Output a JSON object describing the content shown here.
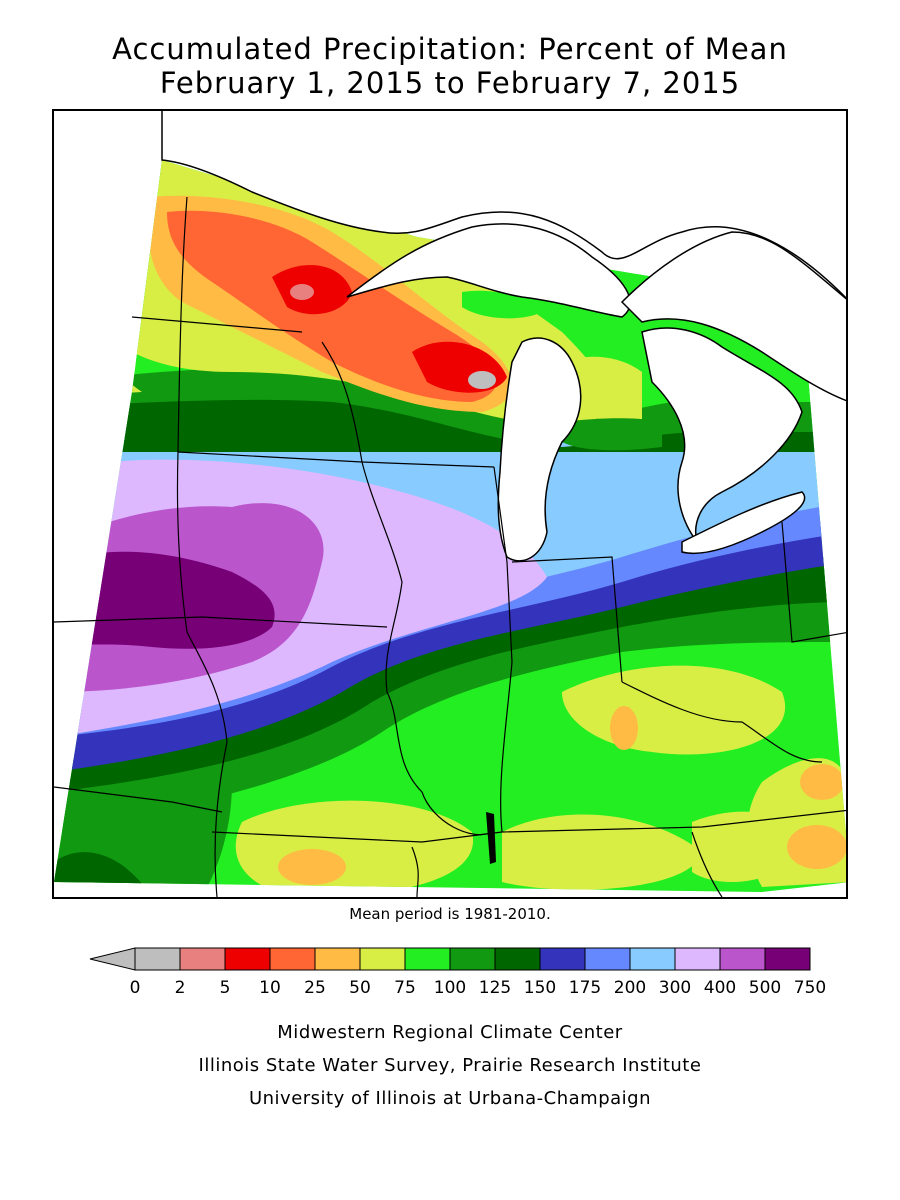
{
  "title": {
    "line1": "Accumulated Precipitation: Percent of Mean",
    "line2": "February 1, 2015 to February 7, 2015"
  },
  "note": "Mean period is 1981-2010.",
  "legend": {
    "ticks": [
      "0",
      "2",
      "5",
      "10",
      "25",
      "50",
      "75",
      "100",
      "125",
      "150",
      "175",
      "200",
      "300",
      "400",
      "500",
      "750"
    ],
    "colors": [
      "#bebebe",
      "#e88080",
      "#ee0000",
      "#ff6633",
      "#ffbb44",
      "#d8ee44",
      "#22ee22",
      "#119911",
      "#006600",
      "#3333bb",
      "#6688ff",
      "#88ccff",
      "#ddb8ff",
      "#bb55cc",
      "#770077"
    ],
    "underflow_color": "#bebebe"
  },
  "credits": {
    "line1": "Midwestern Regional Climate Center",
    "line2": "Illinois State Water Survey, Prairie Research Institute",
    "line3": "University of Illinois at Urbana-Champaign"
  }
}
